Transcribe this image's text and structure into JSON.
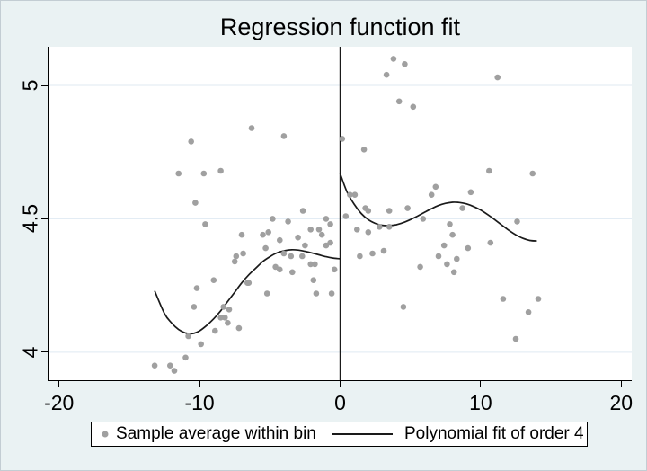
{
  "title": "Regression function fit",
  "legend": {
    "marker_label": "Sample average within bin",
    "line_label": "Polynomial fit of order 4"
  },
  "colors": {
    "background": "#eaf2f3",
    "plot_background": "#ffffff",
    "grid": "#dfe9f2",
    "dot": "#a0a0a0",
    "fit_line": "#1a1a1a",
    "cutoff_line": "#1a1a1a",
    "axis": "#000000",
    "legend_background": "#ffffff",
    "legend_border": "#000000"
  },
  "chart_data": {
    "type": "scatter",
    "title": "Regression function fit",
    "xlabel": "",
    "ylabel": "",
    "xlim": [
      -20.75,
      20.75
    ],
    "ylim": [
      3.895,
      5.145
    ],
    "xticks": [
      -20,
      -10,
      0,
      10,
      20
    ],
    "yticks": [
      4,
      4.5,
      5
    ],
    "grid": "horizontal gridlines at yticks",
    "legend_position": "bottom",
    "cutoff_line_x": 0,
    "series": [
      {
        "name": "Sample average within bin",
        "type": "scatter",
        "points": [
          [
            -13.2,
            3.95
          ],
          [
            -12.1,
            3.95
          ],
          [
            -11.8,
            3.93
          ],
          [
            -11.0,
            3.98
          ],
          [
            -10.8,
            4.06
          ],
          [
            -9.9,
            4.03
          ],
          [
            -10.4,
            4.17
          ],
          [
            -10.2,
            4.24
          ],
          [
            -10.6,
            4.79
          ],
          [
            -11.5,
            4.67
          ],
          [
            -10.3,
            4.56
          ],
          [
            -9.7,
            4.67
          ],
          [
            -9.6,
            4.48
          ],
          [
            -9.0,
            4.27
          ],
          [
            -8.9,
            4.08
          ],
          [
            -8.5,
            4.13
          ],
          [
            -8.2,
            4.13
          ],
          [
            -8.3,
            4.17
          ],
          [
            -7.9,
            4.16
          ],
          [
            -8.0,
            4.11
          ],
          [
            -8.5,
            4.68
          ],
          [
            -7.2,
            4.09
          ],
          [
            -7.5,
            4.34
          ],
          [
            -7.0,
            4.44
          ],
          [
            -7.4,
            4.36
          ],
          [
            -6.9,
            4.37
          ],
          [
            -6.6,
            4.26
          ],
          [
            -6.5,
            4.26
          ],
          [
            -6.3,
            4.84
          ],
          [
            -5.5,
            4.44
          ],
          [
            -5.3,
            4.39
          ],
          [
            -5.1,
            4.45
          ],
          [
            -5.2,
            4.22
          ],
          [
            -4.8,
            4.5
          ],
          [
            -4.6,
            4.32
          ],
          [
            -4.3,
            4.31
          ],
          [
            -4.3,
            4.42
          ],
          [
            -4.0,
            4.81
          ],
          [
            -4.0,
            4.37
          ],
          [
            -3.7,
            4.49
          ],
          [
            -3.5,
            4.36
          ],
          [
            -3.4,
            4.3
          ],
          [
            -3.0,
            4.43
          ],
          [
            -2.7,
            4.36
          ],
          [
            -2.65,
            4.53
          ],
          [
            -2.5,
            4.4
          ],
          [
            -2.1,
            4.46
          ],
          [
            -2.1,
            4.33
          ],
          [
            -1.9,
            4.27
          ],
          [
            -1.8,
            4.33
          ],
          [
            -1.7,
            4.22
          ],
          [
            -1.5,
            4.46
          ],
          [
            -1.3,
            4.44
          ],
          [
            -1.0,
            4.5
          ],
          [
            -1.0,
            4.4
          ],
          [
            -0.7,
            4.48
          ],
          [
            -0.7,
            4.41
          ],
          [
            -0.6,
            4.22
          ],
          [
            -0.4,
            4.31
          ],
          [
            0.15,
            4.8
          ],
          [
            0.4,
            4.51
          ],
          [
            0.7,
            4.59
          ],
          [
            1.05,
            4.59
          ],
          [
            1.2,
            4.46
          ],
          [
            1.4,
            4.36
          ],
          [
            1.7,
            4.76
          ],
          [
            1.8,
            4.54
          ],
          [
            2.0,
            4.53
          ],
          [
            2.0,
            4.45
          ],
          [
            2.3,
            4.37
          ],
          [
            2.8,
            4.47
          ],
          [
            3.1,
            4.38
          ],
          [
            3.3,
            5.04
          ],
          [
            3.5,
            4.53
          ],
          [
            3.5,
            4.47
          ],
          [
            3.8,
            5.1
          ],
          [
            4.2,
            4.94
          ],
          [
            4.5,
            4.17
          ],
          [
            4.6,
            5.08
          ],
          [
            4.8,
            4.54
          ],
          [
            5.2,
            4.92
          ],
          [
            5.7,
            4.32
          ],
          [
            5.9,
            4.5
          ],
          [
            6.5,
            4.59
          ],
          [
            6.8,
            4.62
          ],
          [
            7.0,
            4.36
          ],
          [
            7.4,
            4.4
          ],
          [
            7.6,
            4.33
          ],
          [
            7.8,
            4.48
          ],
          [
            8.0,
            4.44
          ],
          [
            8.1,
            4.3
          ],
          [
            8.3,
            4.35
          ],
          [
            8.7,
            4.54
          ],
          [
            9.1,
            4.39
          ],
          [
            9.3,
            4.6
          ],
          [
            10.6,
            4.68
          ],
          [
            10.7,
            4.41
          ],
          [
            11.2,
            5.03
          ],
          [
            11.6,
            4.2
          ],
          [
            12.5,
            4.05
          ],
          [
            12.6,
            4.49
          ],
          [
            13.4,
            4.15
          ],
          [
            13.7,
            4.67
          ],
          [
            14.1,
            4.2
          ]
        ]
      },
      {
        "name": "Polynomial fit of order 4",
        "type": "line",
        "segments": [
          [
            [
              -13.2,
              4.23
            ],
            [
              -12.5,
              4.145
            ],
            [
              -12.0,
              4.11
            ],
            [
              -11.5,
              4.085
            ],
            [
              -11.0,
              4.072
            ],
            [
              -10.5,
              4.07
            ],
            [
              -10.0,
              4.08
            ],
            [
              -9.5,
              4.1
            ],
            [
              -9.0,
              4.125
            ],
            [
              -8.5,
              4.155
            ],
            [
              -8.0,
              4.19
            ],
            [
              -7.5,
              4.225
            ],
            [
              -7.0,
              4.26
            ],
            [
              -6.5,
              4.29
            ],
            [
              -6.0,
              4.315
            ],
            [
              -5.5,
              4.34
            ],
            [
              -5.0,
              4.358
            ],
            [
              -4.5,
              4.372
            ],
            [
              -4.0,
              4.38
            ],
            [
              -3.5,
              4.384
            ],
            [
              -3.0,
              4.383
            ],
            [
              -2.5,
              4.378
            ],
            [
              -2.0,
              4.372
            ],
            [
              -1.5,
              4.365
            ],
            [
              -1.0,
              4.358
            ],
            [
              -0.5,
              4.353
            ],
            [
              0.0,
              4.35
            ]
          ],
          [
            [
              0.0,
              4.67
            ],
            [
              0.5,
              4.6
            ],
            [
              1.0,
              4.555
            ],
            [
              1.5,
              4.52
            ],
            [
              2.0,
              4.497
            ],
            [
              2.5,
              4.483
            ],
            [
              3.0,
              4.476
            ],
            [
              3.5,
              4.475
            ],
            [
              4.0,
              4.478
            ],
            [
              4.5,
              4.486
            ],
            [
              5.0,
              4.497
            ],
            [
              5.5,
              4.51
            ],
            [
              6.0,
              4.524
            ],
            [
              6.5,
              4.538
            ],
            [
              7.0,
              4.55
            ],
            [
              7.5,
              4.558
            ],
            [
              8.0,
              4.562
            ],
            [
              8.5,
              4.561
            ],
            [
              9.0,
              4.556
            ],
            [
              9.5,
              4.546
            ],
            [
              10.0,
              4.533
            ],
            [
              10.5,
              4.516
            ],
            [
              11.0,
              4.497
            ],
            [
              11.5,
              4.477
            ],
            [
              12.0,
              4.457
            ],
            [
              12.5,
              4.44
            ],
            [
              13.0,
              4.427
            ],
            [
              13.5,
              4.419
            ],
            [
              14.0,
              4.417
            ]
          ]
        ]
      }
    ]
  }
}
